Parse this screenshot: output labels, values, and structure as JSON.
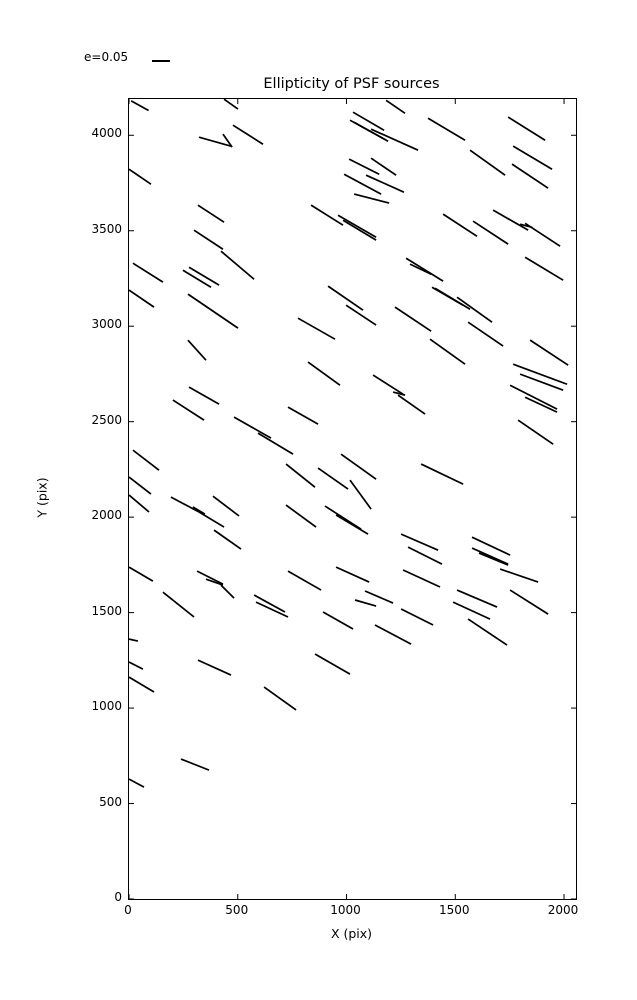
{
  "accent_color": "#000000",
  "background_color": "#ffffff",
  "legend": {
    "label": "e=0.05",
    "swatch": "line-swatch"
  },
  "chart_data": {
    "type": "line",
    "subtype": "ellipticity-whisker-plot",
    "title": "Ellipticity of PSF sources",
    "xlabel": "X (pix)",
    "ylabel": "Y (pix)",
    "xlim": [
      0,
      2055
    ],
    "ylim": [
      0,
      4190
    ],
    "grid": false,
    "legend_position": "upper-left-above-axes",
    "legend_label": "e=0.05",
    "xticks": [
      0,
      500,
      1000,
      1500,
      2000
    ],
    "yticks": [
      0,
      500,
      1000,
      1500,
      2000,
      2500,
      3000,
      3500,
      4000
    ],
    "segments_format": "[x1,y1,x2,y2] in data pixels; each segment is one PSF source ellipticity whisker",
    "segments": [
      [
        10,
        4180,
        90,
        4130
      ],
      [
        437,
        4189,
        501,
        4137
      ],
      [
        478,
        4053,
        616,
        3953
      ],
      [
        322,
        3990,
        469,
        3943
      ],
      [
        432,
        4006,
        474,
        3938
      ],
      [
        0,
        3822,
        101,
        3744
      ],
      [
        317,
        3634,
        437,
        3545
      ],
      [
        299,
        3503,
        432,
        3403
      ],
      [
        1182,
        4183,
        1269,
        4115
      ],
      [
        1030,
        4121,
        1173,
        4026
      ],
      [
        1016,
        4079,
        1173,
        3980
      ],
      [
        1035,
        4068,
        1191,
        3969
      ],
      [
        1113,
        4032,
        1329,
        3922
      ],
      [
        1012,
        3875,
        1150,
        3796
      ],
      [
        1113,
        3880,
        1228,
        3791
      ],
      [
        989,
        3796,
        1159,
        3692
      ],
      [
        1090,
        3791,
        1264,
        3702
      ],
      [
        1035,
        3692,
        1196,
        3645
      ],
      [
        837,
        3634,
        984,
        3529
      ],
      [
        961,
        3581,
        1136,
        3466
      ],
      [
        984,
        3555,
        1136,
        3451
      ],
      [
        1375,
        4089,
        1545,
        3974
      ],
      [
        1743,
        4095,
        1913,
        3974
      ],
      [
        1568,
        3922,
        1729,
        3791
      ],
      [
        1766,
        3943,
        1945,
        3822
      ],
      [
        1761,
        3849,
        1927,
        3723
      ],
      [
        1444,
        3587,
        1600,
        3471
      ],
      [
        1582,
        3550,
        1743,
        3430
      ],
      [
        1674,
        3608,
        1835,
        3503
      ],
      [
        1821,
        3539,
        1982,
        3419
      ],
      [
        1798,
        3534,
        1853,
        3518
      ],
      [
        18,
        3330,
        156,
        3231
      ],
      [
        0,
        3189,
        115,
        3100
      ],
      [
        248,
        3293,
        377,
        3204
      ],
      [
        276,
        3309,
        414,
        3215
      ],
      [
        423,
        3393,
        575,
        3246
      ],
      [
        271,
        3168,
        501,
        2990
      ],
      [
        271,
        2927,
        354,
        2822
      ],
      [
        276,
        2681,
        414,
        2592
      ],
      [
        202,
        2613,
        345,
        2508
      ],
      [
        915,
        3210,
        1076,
        3084
      ],
      [
        998,
        3110,
        1136,
        3006
      ],
      [
        777,
        3042,
        947,
        2932
      ],
      [
        1223,
        3100,
        1389,
        2974
      ],
      [
        823,
        2812,
        970,
        2691
      ],
      [
        1122,
        2744,
        1260,
        2644
      ],
      [
        1214,
        2655,
        1269,
        2639
      ],
      [
        1237,
        2639,
        1361,
        2540
      ],
      [
        731,
        2576,
        869,
        2487
      ],
      [
        1274,
        3356,
        1444,
        3236
      ],
      [
        1292,
        3325,
        1389,
        3272
      ],
      [
        1393,
        3204,
        1536,
        3110
      ],
      [
        1821,
        3361,
        1996,
        3241
      ],
      [
        1407,
        3199,
        1568,
        3089
      ],
      [
        1508,
        3152,
        1669,
        3021
      ],
      [
        1559,
        3021,
        1720,
        2896
      ],
      [
        1384,
        2932,
        1545,
        2801
      ],
      [
        1844,
        2927,
        2019,
        2796
      ],
      [
        1766,
        2801,
        2014,
        2696
      ],
      [
        1798,
        2749,
        1996,
        2665
      ],
      [
        1752,
        2691,
        1968,
        2566
      ],
      [
        1821,
        2628,
        1968,
        2550
      ],
      [
        483,
        2524,
        653,
        2414
      ],
      [
        593,
        2440,
        754,
        2330
      ],
      [
        18,
        2351,
        138,
        2246
      ],
      [
        0,
        2210,
        101,
        2121
      ],
      [
        0,
        2116,
        92,
        2027
      ],
      [
        193,
        2105,
        322,
        2027
      ],
      [
        294,
        2053,
        349,
        2016
      ],
      [
        386,
        2110,
        506,
        2006
      ],
      [
        322,
        2027,
        437,
        1948
      ],
      [
        391,
        1932,
        515,
        1833
      ],
      [
        0,
        1738,
        110,
        1665
      ],
      [
        313,
        1717,
        432,
        1649
      ],
      [
        722,
        2278,
        855,
        2157
      ],
      [
        869,
        2257,
        1007,
        2147
      ],
      [
        975,
        2330,
        1136,
        2199
      ],
      [
        1016,
        2194,
        1113,
        2042
      ],
      [
        722,
        2063,
        860,
        1948
      ],
      [
        901,
        2058,
        1067,
        1937
      ],
      [
        952,
        2011,
        1099,
        1911
      ],
      [
        1251,
        1911,
        1421,
        1827
      ],
      [
        1283,
        1843,
        1439,
        1754
      ],
      [
        952,
        1738,
        1104,
        1660
      ],
      [
        731,
        1717,
        883,
        1618
      ],
      [
        1260,
        1723,
        1430,
        1634
      ],
      [
        1343,
        2278,
        1536,
        2173
      ],
      [
        1789,
        2508,
        1950,
        2382
      ],
      [
        1577,
        1895,
        1752,
        1801
      ],
      [
        1577,
        1838,
        1743,
        1754
      ],
      [
        1609,
        1812,
        1743,
        1749
      ],
      [
        1706,
        1728,
        1881,
        1660
      ],
      [
        156,
        1607,
        299,
        1477
      ],
      [
        354,
        1675,
        432,
        1644
      ],
      [
        423,
        1644,
        483,
        1576
      ],
      [
        575,
        1592,
        717,
        1503
      ],
      [
        584,
        1555,
        731,
        1477
      ],
      [
        0,
        1361,
        41,
        1351
      ],
      [
        0,
        1241,
        64,
        1204
      ],
      [
        0,
        1162,
        115,
        1084
      ],
      [
        317,
        1251,
        469,
        1173
      ],
      [
        621,
        1110,
        768,
        990
      ],
      [
        1085,
        1613,
        1214,
        1550
      ],
      [
        1039,
        1566,
        1136,
        1534
      ],
      [
        892,
        1503,
        1030,
        1414
      ],
      [
        1131,
        1435,
        1297,
        1335
      ],
      [
        1251,
        1519,
        1398,
        1435
      ],
      [
        855,
        1283,
        1016,
        1178
      ],
      [
        1508,
        1618,
        1692,
        1529
      ],
      [
        1490,
        1555,
        1660,
        1466
      ],
      [
        1559,
        1466,
        1738,
        1330
      ],
      [
        1752,
        1618,
        1927,
        1492
      ],
      [
        239,
        733,
        368,
        675
      ],
      [
        0,
        628,
        69,
        586
      ]
    ]
  }
}
